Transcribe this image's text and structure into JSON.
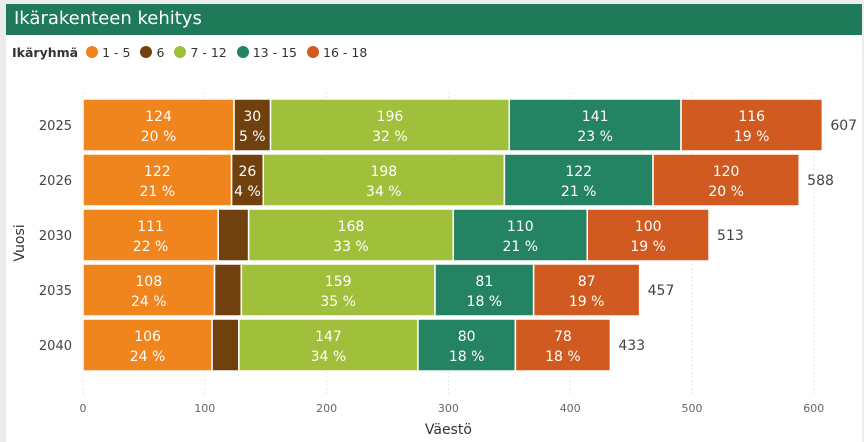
{
  "header": {
    "title": "Ikärakenteen kehitys"
  },
  "legend": {
    "title": "Ikäryhmä"
  },
  "chart_data": {
    "type": "bar",
    "orientation": "horizontal",
    "stacked": true,
    "categories": [
      "2025",
      "2026",
      "2030",
      "2035",
      "2040"
    ],
    "series": [
      {
        "name": "1 - 5",
        "color": "#f0841d",
        "values": [
          124,
          122,
          111,
          108,
          106
        ],
        "percent_labels": [
          "20 %",
          "21 %",
          "22 %",
          "24 %",
          "24 %"
        ]
      },
      {
        "name": "6",
        "color": "#70410f",
        "values": [
          30,
          26,
          25,
          22,
          22
        ],
        "value_labels": [
          "30",
          "26",
          "",
          "",
          ""
        ],
        "percent_labels": [
          "5 %",
          "4 %",
          "",
          "",
          ""
        ]
      },
      {
        "name": "7 - 12",
        "color": "#a0bf3a",
        "values": [
          196,
          198,
          168,
          159,
          147
        ],
        "percent_labels": [
          "32 %",
          "34 %",
          "33 %",
          "35 %",
          "34 %"
        ]
      },
      {
        "name": "13 - 15",
        "color": "#248363",
        "values": [
          141,
          122,
          110,
          81,
          80
        ],
        "percent_labels": [
          "23 %",
          "21 %",
          "21 %",
          "18 %",
          "18 %"
        ]
      },
      {
        "name": "16 - 18",
        "color": "#d05a1f",
        "values": [
          116,
          120,
          100,
          87,
          78
        ],
        "percent_labels": [
          "19 %",
          "20 %",
          "19 %",
          "19 %",
          "18 %"
        ]
      }
    ],
    "totals": [
      607,
      588,
      513,
      457,
      433
    ],
    "xlabel": "Väestö",
    "ylabel": "Vuosi",
    "xlim": [
      0,
      620
    ],
    "xticks": [
      0,
      100,
      200,
      300,
      400,
      500,
      600
    ],
    "grid": "vertical",
    "legend_position": "top-left"
  }
}
